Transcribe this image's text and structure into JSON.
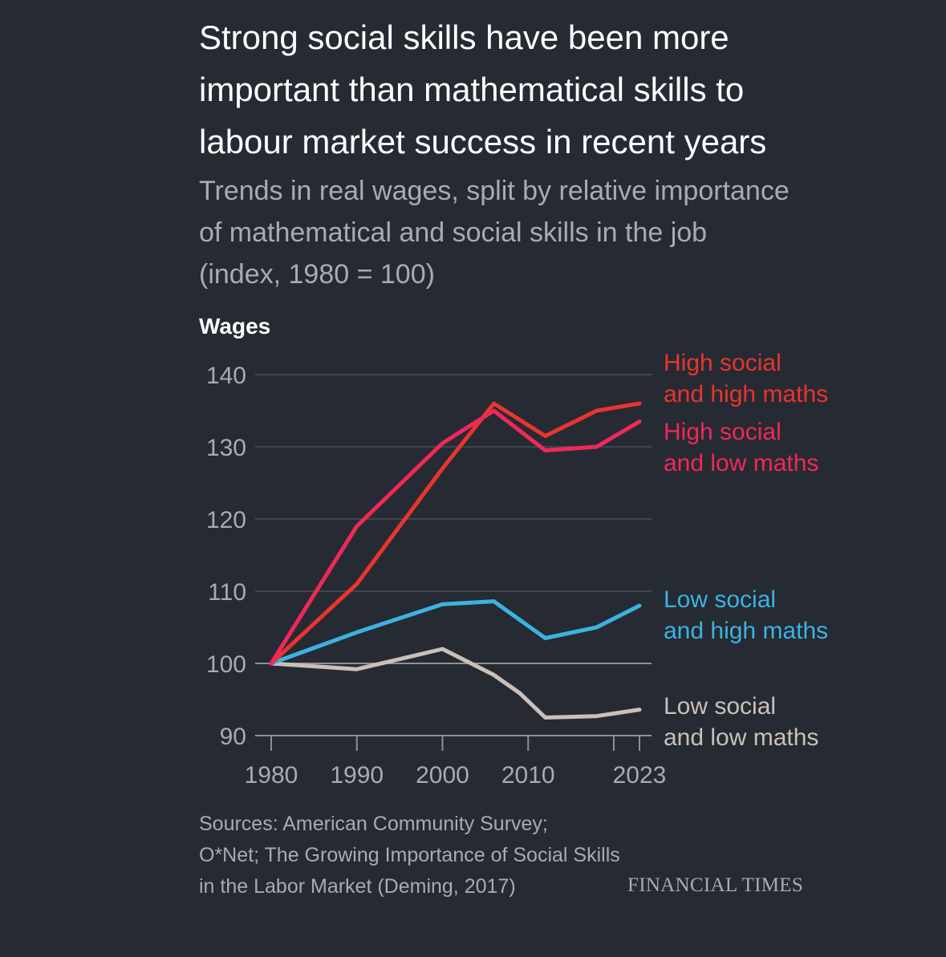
{
  "header": {
    "title_lines": [
      "Strong social skills have been more",
      "important than mathematical skills to",
      "labour market success in recent years"
    ],
    "subtitle_lines": [
      "Trends in real wages, split by relative importance",
      "of mathematical and social skills in the job",
      "(index, 1980 = 100)"
    ]
  },
  "chart_data": {
    "type": "line",
    "title": "Strong social skills have been more important than mathematical skills to labour market success in recent years",
    "subtitle": "Trends in real wages, split by relative importance of mathematical and social skills in the job (index, 1980 = 100)",
    "ylabel": "Wages",
    "xlabel": "",
    "xlim": [
      1980,
      2023
    ],
    "ylim": [
      90,
      140
    ],
    "yticks": [
      90,
      100,
      110,
      120,
      130,
      140
    ],
    "ytick_labels": [
      "90",
      "100",
      "110",
      "120",
      "130",
      "140"
    ],
    "xticks": [
      1980,
      1990,
      2000,
      2010,
      2020,
      2023
    ],
    "xtick_labels": [
      {
        "value": 1980,
        "label": "1980"
      },
      {
        "value": 1990,
        "label": "1990"
      },
      {
        "value": 2000,
        "label": "2000"
      },
      {
        "value": 2010,
        "label": "2010"
      },
      {
        "value": 2023,
        "label": "2023"
      }
    ],
    "grid": true,
    "legend": "direct-labels-right",
    "series": [
      {
        "name": "High social and high maths",
        "label_lines": [
          "High social",
          "and high maths"
        ],
        "color": "#e8352e",
        "x": [
          1980,
          1990,
          2000,
          2006,
          2012,
          2018,
          2023
        ],
        "y": [
          100,
          111,
          127,
          136,
          131.5,
          135,
          136
        ]
      },
      {
        "name": "High social and low maths",
        "label_lines": [
          "High social",
          "and low maths"
        ],
        "color": "#f0285a",
        "x": [
          1980,
          1990,
          2000,
          2006,
          2012,
          2018,
          2023
        ],
        "y": [
          100,
          119,
          130.5,
          135,
          129.5,
          130,
          133.5
        ]
      },
      {
        "name": "Low social and high maths",
        "label_lines": [
          "Low social",
          "and high maths"
        ],
        "color": "#3ab3e2",
        "x": [
          1980,
          1990,
          2000,
          2006,
          2012,
          2018,
          2023
        ],
        "y": [
          100,
          104.3,
          108.2,
          108.6,
          103.5,
          105,
          108
        ]
      },
      {
        "name": "Low social and low maths",
        "label_lines": [
          "Low social",
          "and low maths"
        ],
        "color": "#c9c1b9",
        "x": [
          1980,
          1990,
          2000,
          2006,
          2009,
          2012,
          2018,
          2023
        ],
        "y": [
          100,
          99.2,
          102,
          98.4,
          95.9,
          92.5,
          92.7,
          93.6
        ]
      }
    ]
  },
  "footer": {
    "sources_lines": [
      "Sources: American Community Survey;",
      "O*Net; The Growing Importance of Social Skills",
      "in the Labor Market (Deming, 2017)"
    ],
    "brand": "FINANCIAL TIMES"
  }
}
